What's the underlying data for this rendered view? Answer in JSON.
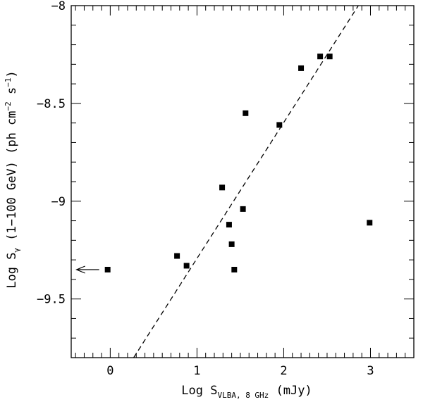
{
  "chart_data": {
    "type": "scatter",
    "title": "",
    "xlabel": {
      "prefix": "Log S",
      "subscript": "VLBA, 8 GHz",
      "suffix": " (mJy)"
    },
    "ylabel": {
      "prefix": "Log S",
      "subscript": "γ",
      "middle": " (1−100 GeV) (ph cm",
      "sup1": "−2",
      "middle2": " s",
      "sup2": "−1",
      "suffix": ")"
    },
    "xlim": [
      -0.45,
      3.5
    ],
    "ylim": [
      -9.8,
      -8.0
    ],
    "x_ticks": [
      {
        "value": 0,
        "label": "0"
      },
      {
        "value": 1,
        "label": "1"
      },
      {
        "value": 2,
        "label": "2"
      },
      {
        "value": 3,
        "label": "3"
      }
    ],
    "y_ticks": [
      {
        "value": -8.0,
        "label": "−8"
      },
      {
        "value": -8.5,
        "label": "−8.5"
      },
      {
        "value": -9.0,
        "label": "−9"
      },
      {
        "value": -9.5,
        "label": "−9.5"
      }
    ],
    "x_minor_step": 0.1,
    "y_minor_step": 0.1,
    "grid": false,
    "legend": "none",
    "points": [
      {
        "x": 0.77,
        "y": -9.28
      },
      {
        "x": 0.88,
        "y": -9.33
      },
      {
        "x": 1.29,
        "y": -8.93
      },
      {
        "x": 1.37,
        "y": -9.12
      },
      {
        "x": 1.4,
        "y": -9.22
      },
      {
        "x": 1.43,
        "y": -9.35
      },
      {
        "x": 1.53,
        "y": -9.04
      },
      {
        "x": 1.56,
        "y": -8.55
      },
      {
        "x": 1.95,
        "y": -8.61
      },
      {
        "x": 2.2,
        "y": -8.32
      },
      {
        "x": 2.42,
        "y": -8.26
      },
      {
        "x": 2.53,
        "y": -8.26
      },
      {
        "x": 2.99,
        "y": -9.11
      }
    ],
    "upper_limits": [
      {
        "x": -0.03,
        "y": -9.35,
        "direction": "left"
      }
    ],
    "fit_line": {
      "style": "dashed",
      "points": [
        [
          0.27,
          -9.8
        ],
        [
          2.86,
          -8.0
        ]
      ]
    },
    "marker_color": "#000000",
    "line_color": "#000000"
  }
}
